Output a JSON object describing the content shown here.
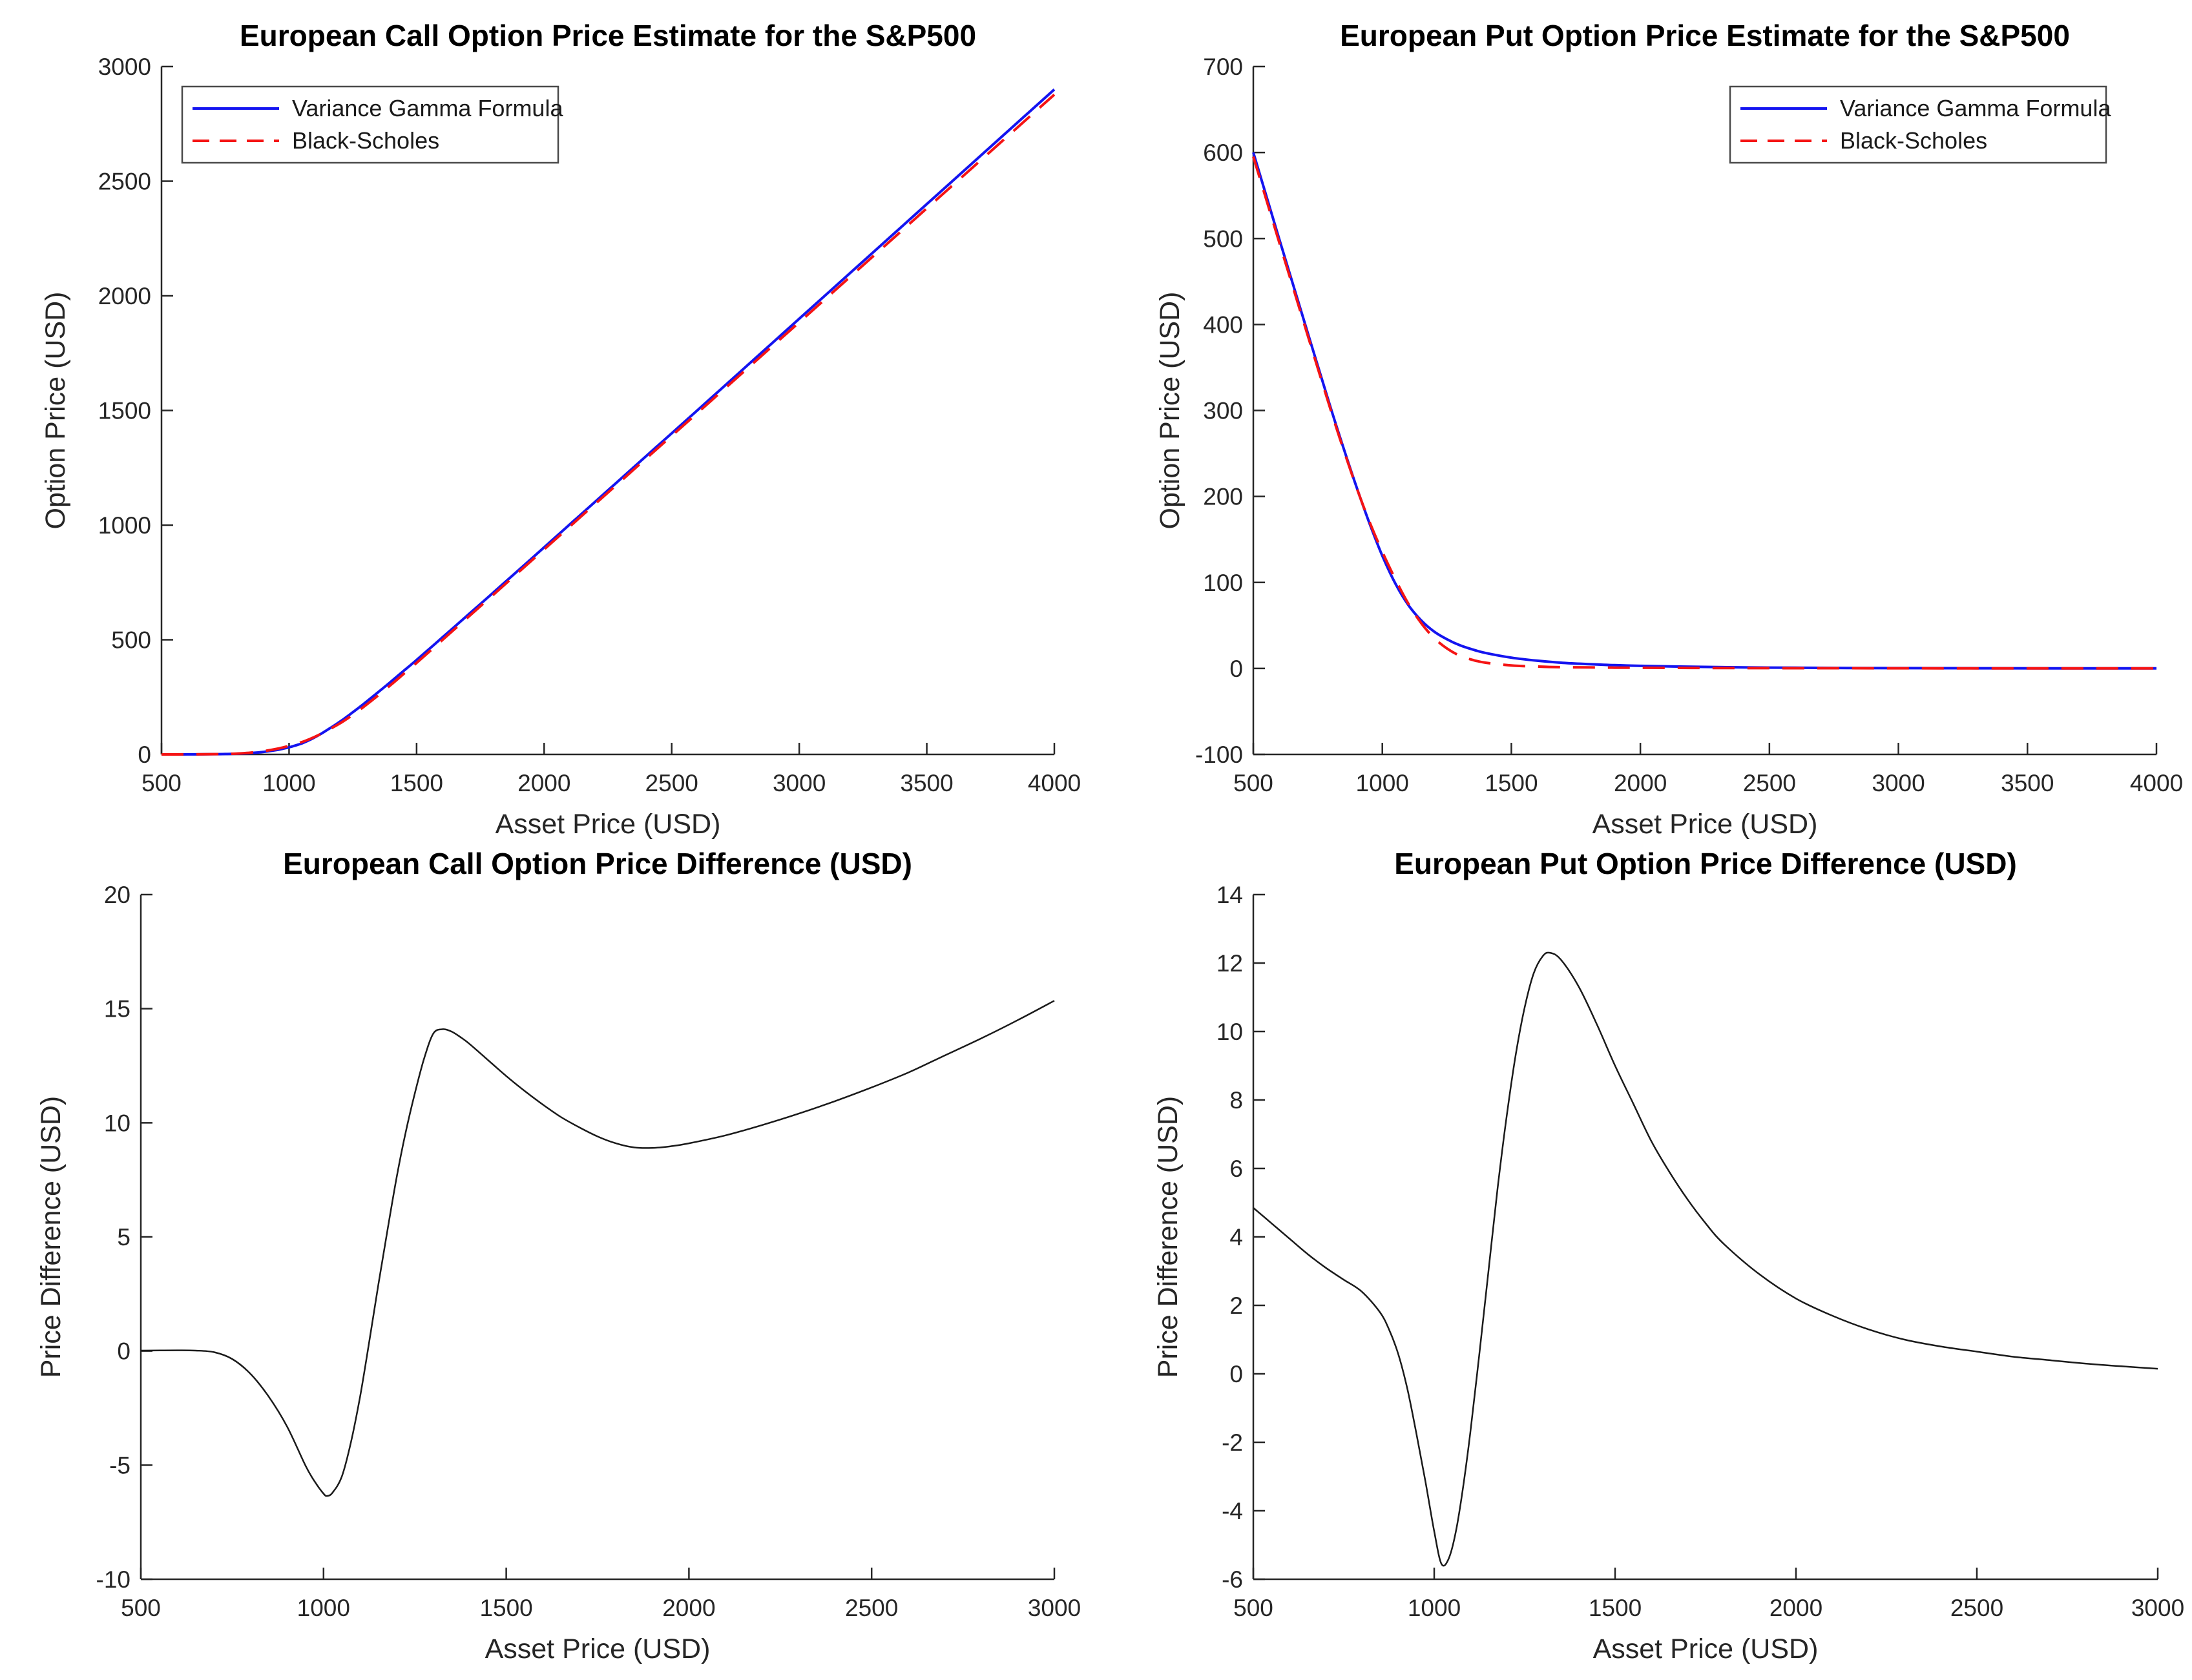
{
  "figure": {
    "background": "#ffffff",
    "axis_color": "#262626",
    "title_color": "#000000",
    "series_colors": {
      "variance_gamma": "#1414f0",
      "black_scholes": "#f51414",
      "difference": "#1a1a1a"
    },
    "legend_border_color": "#4a4a4a"
  },
  "chart_data": [
    {
      "type": "line",
      "title": "European Call Option Price Estimate for the S&P500",
      "xlabel": "Asset Price (USD)",
      "ylabel": "Option Price (USD)",
      "xlim": [
        500,
        4000
      ],
      "ylim": [
        0,
        3000
      ],
      "xticks": [
        500,
        1000,
        1500,
        2000,
        2500,
        3000,
        3500,
        4000
      ],
      "yticks": [
        0,
        500,
        1000,
        1500,
        2000,
        2500,
        3000
      ],
      "grid": false,
      "legend": {
        "position": "northwest",
        "labels": [
          "Variance Gamma Formula",
          "Black-Scholes"
        ]
      },
      "x": [
        500,
        600,
        700,
        750,
        800,
        850,
        900,
        950,
        975,
        1000,
        1025,
        1050,
        1075,
        1100,
        1125,
        1150,
        1175,
        1200,
        1225,
        1250,
        1275,
        1300,
        1350,
        1400,
        1450,
        1500,
        1600,
        1700,
        1800,
        1900,
        2000,
        2200,
        2400,
        2600,
        2800,
        3000,
        3200,
        3400,
        3600,
        3800,
        4000
      ],
      "series": [
        {
          "name": "Variance Gamma Formula",
          "color": "#1414f0",
          "dash": false,
          "y": [
            0,
            0.2,
            1,
            1.8,
            3,
            6,
            11,
            19,
            24.5,
            31,
            39,
            48,
            60,
            74,
            89.5,
            107,
            124.5,
            143,
            163,
            184,
            205,
            227,
            272,
            318,
            365,
            412,
            509,
            607,
            705,
            804,
            903,
            1102,
            1301,
            1500,
            1700,
            1900,
            2100,
            2300,
            2500,
            2700,
            2900
          ]
        },
        {
          "name": "Black-Scholes",
          "color": "#f51414",
          "dash": true,
          "y": [
            0,
            0.2,
            1.1,
            2.1,
            3.9,
            7.9,
            14.2,
            23.9,
            30.1,
            37.2,
            45.3,
            53.7,
            64.3,
            76.4,
            89.6,
            104.6,
            119.6,
            135.8,
            153.7,
            173,
            192.7,
            213.8,
            257.9,
            304.1,
            351.7,
            399.4,
            497.8,
            596.9,
            695.6,
            795,
            894,
            1092.5,
            1290.6,
            1488.3,
            1686.6,
            1884.6,
            2083.4,
            2282.1,
            2480.7,
            2679.2,
            2877.6
          ]
        }
      ]
    },
    {
      "type": "line",
      "title": "European Put Option Price Estimate for the S&P500",
      "xlabel": "Asset Price (USD)",
      "ylabel": "Option Price (USD)",
      "xlim": [
        500,
        4000
      ],
      "ylim": [
        -100,
        700
      ],
      "xticks": [
        500,
        1000,
        1500,
        2000,
        2500,
        3000,
        3500,
        4000
      ],
      "yticks": [
        -100,
        0,
        100,
        200,
        300,
        400,
        500,
        600,
        700
      ],
      "grid": false,
      "legend": {
        "position": "northeast",
        "labels": [
          "Variance Gamma Formula",
          "Black-Scholes"
        ]
      },
      "x": [
        500,
        600,
        700,
        800,
        850,
        900,
        950,
        1000,
        1050,
        1100,
        1150,
        1200,
        1250,
        1300,
        1350,
        1400,
        1500,
        1600,
        1700,
        1800,
        1900,
        2000,
        2200,
        2400,
        2600,
        2800,
        3000,
        3200,
        3400,
        3600,
        3800,
        4000
      ],
      "series": [
        {
          "name": "Variance Gamma Formula",
          "color": "#1414f0",
          "dash": false,
          "y": [
            600,
            500,
            401,
            303,
            256,
            211,
            169,
            131,
            99,
            74,
            56,
            43,
            34,
            27,
            22,
            18,
            12.5,
            9,
            6.5,
            5,
            3.8,
            3,
            1.9,
            1.2,
            0.8,
            0.5,
            0.35,
            0.25,
            0.18,
            0.14,
            0.11,
            0.1
          ]
        },
        {
          "name": "Black-Scholes",
          "color": "#f51414",
          "dash": true,
          "y": [
            595.2,
            496.1,
            397.9,
            300.6,
            254.2,
            210.4,
            170.7,
            135.6,
            104,
            75.7,
            53,
            35.5,
            23.3,
            14.8,
            9.9,
            6.7,
            3.5,
            2.2,
            1.4,
            1.2,
            0.9,
            0.8,
            0.6,
            0.4,
            0.3,
            0.25,
            0.2,
            0.15,
            0.12,
            0.1,
            0.09,
            0.08
          ]
        }
      ]
    },
    {
      "type": "line",
      "title": "European Call Option Price Difference (USD)",
      "xlabel": "Asset Price (USD)",
      "ylabel": "Price Difference (USD)",
      "xlim": [
        500,
        3000
      ],
      "ylim": [
        -10,
        20
      ],
      "xticks": [
        500,
        1000,
        1500,
        2000,
        2500,
        3000
      ],
      "yticks": [
        -10,
        -5,
        0,
        5,
        10,
        15,
        20
      ],
      "grid": false,
      "legend": null,
      "x": [
        500,
        600,
        650,
        700,
        750,
        800,
        850,
        900,
        950,
        975,
        1000,
        1010,
        1025,
        1050,
        1075,
        1100,
        1125,
        1150,
        1175,
        1200,
        1225,
        1250,
        1275,
        1300,
        1325,
        1350,
        1375,
        1400,
        1450,
        1500,
        1550,
        1600,
        1650,
        1700,
        1750,
        1800,
        1850,
        1900,
        1950,
        2000,
        2100,
        2200,
        2300,
        2400,
        2500,
        2600,
        2700,
        2800,
        2900,
        3000
      ],
      "series": [
        {
          "name": "Price Difference",
          "color": "#1a1a1a",
          "dash": false,
          "y": [
            0.02,
            0.03,
            0.02,
            -0.05,
            -0.35,
            -1,
            -2,
            -3.3,
            -5,
            -5.7,
            -6.25,
            -6.35,
            -6.2,
            -5.5,
            -4,
            -2,
            0.4,
            2.9,
            5.3,
            7.6,
            9.6,
            11.3,
            12.8,
            13.9,
            14.1,
            14,
            13.75,
            13.45,
            12.75,
            12.05,
            11.4,
            10.8,
            10.25,
            9.8,
            9.4,
            9.1,
            8.92,
            8.9,
            8.97,
            9.1,
            9.45,
            9.9,
            10.4,
            10.95,
            11.55,
            12.2,
            12.95,
            13.7,
            14.5,
            15.35
          ]
        }
      ]
    },
    {
      "type": "line",
      "title": "European Put Option Price Difference (USD)",
      "xlabel": "Asset Price (USD)",
      "ylabel": "Price Difference (USD)",
      "xlim": [
        500,
        3000
      ],
      "ylim": [
        -6,
        14
      ],
      "xticks": [
        500,
        1000,
        1500,
        2000,
        2500,
        3000
      ],
      "yticks": [
        -6,
        -4,
        -2,
        0,
        2,
        4,
        6,
        8,
        10,
        12,
        14
      ],
      "grid": false,
      "legend": null,
      "x": [
        500,
        550,
        600,
        650,
        700,
        750,
        800,
        850,
        875,
        900,
        925,
        950,
        975,
        1000,
        1020,
        1040,
        1060,
        1080,
        1100,
        1125,
        1150,
        1175,
        1200,
        1225,
        1250,
        1275,
        1300,
        1320,
        1350,
        1400,
        1450,
        1500,
        1550,
        1600,
        1650,
        1700,
        1750,
        1800,
        1900,
        2000,
        2100,
        2200,
        2300,
        2400,
        2500,
        2600,
        2700,
        2800,
        2900,
        3000
      ],
      "series": [
        {
          "name": "Price Difference",
          "color": "#1a1a1a",
          "dash": false,
          "y": [
            4.85,
            4.4,
            3.95,
            3.5,
            3.1,
            2.75,
            2.4,
            1.8,
            1.3,
            0.6,
            -0.4,
            -1.7,
            -3.1,
            -4.6,
            -5.55,
            -5.4,
            -4.6,
            -3.3,
            -1.7,
            0.6,
            3,
            5.4,
            7.5,
            9.3,
            10.7,
            11.7,
            12.2,
            12.3,
            12.1,
            11.3,
            10.2,
            9,
            7.9,
            6.8,
            5.9,
            5.1,
            4.4,
            3.8,
            2.9,
            2.2,
            1.7,
            1.3,
            1,
            0.8,
            0.65,
            0.5,
            0.4,
            0.3,
            0.22,
            0.15
          ]
        }
      ]
    }
  ]
}
